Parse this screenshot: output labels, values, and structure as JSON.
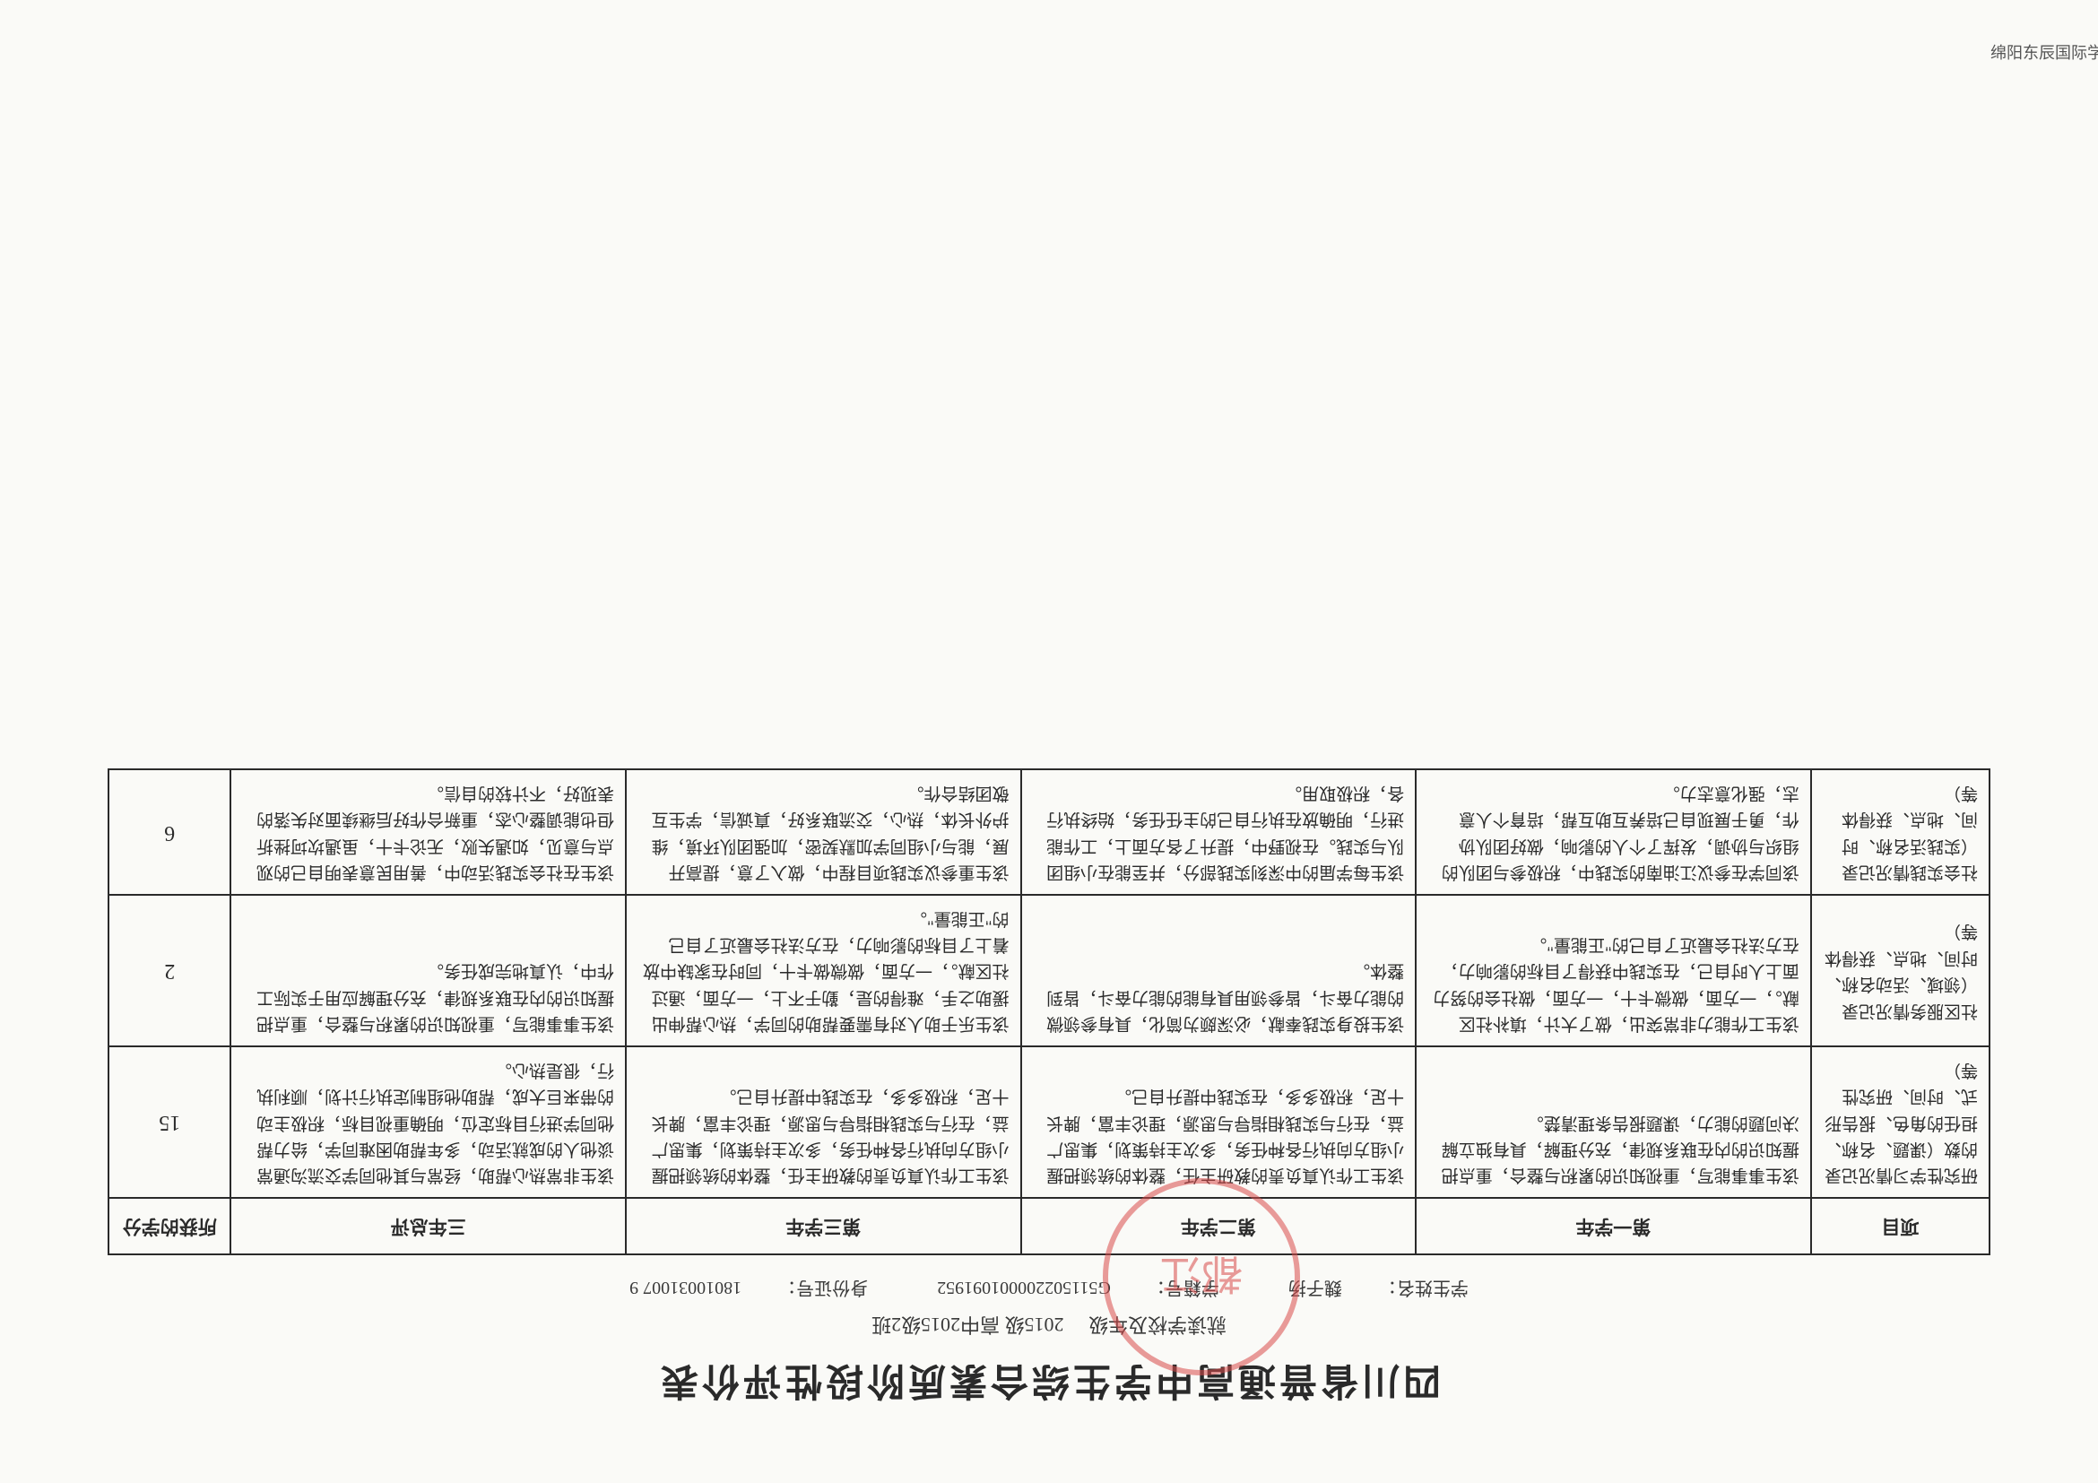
{
  "doc": {
    "title": "四川省普通高中学生综合素质阶段性评价表",
    "school_label": "就读学校及年级",
    "school_value": "2015级    高中2015级2班",
    "student_name_label": "学生姓名：",
    "student_name": "魏子扬",
    "student_id_label": "学籍号：",
    "student_id": "G511502200001091952",
    "id_no_label": "身份证号：",
    "id_no": "18010031007 9",
    "seal_text": "都江",
    "footer": "绵阳东辰国际学校"
  },
  "columns": {
    "item": "项目",
    "y1": "第一学年",
    "y2": "第二学年",
    "y3": "第三学年",
    "y3alt": "三年总评",
    "score": "所获的学分"
  },
  "rows": [
    {
      "item": "研究性学习情况记录的数（课题、名称、担任的角色、报告形式、时间、研究性等）",
      "y1": "该生事事能写，重视知识的累积与整合，重点把握知识的内在联系规律，充分理解，具有独立解决问题的能力，课题报告条理清楚。",
      "y2": "该生工作认真负责的教研主任，整体的统领把握小组方向执行各种任务，多次主持策划，集思广益，在行与实践相指导与思源，理论丰富，脾长十足，积极多多，在实践中提升自己。",
      "y3": "该生工作认真负责的教研主任，整体的统领把握小组方向执行各种任务，多次主持策划，集思广益，在行与实践相指导与思源，理论丰富，脾长十足，积极多多，在实践中提升自己。",
      "y3alt": "该生非常热心帮助，经常与其他同学交流沟通常谈他人的成就活动，多年帮助困难同学，给力帮他同学进行目标定位，明确重视目标，积极主动的带来巨大成，帮助他组制定执行计划，顺利执行，很是热心。",
      "score": "15"
    },
    {
      "item": "社区服务情况记录（领域、活动名称、时间、地点、获得体等）",
      "y1": "该生工作能力非常突出，做了大计，填补社区献。，一方面，做微卡十，一方面，做社会的努力面上人时自己，在实践中获得了目标的影响力，在方法社会最近了自己的\"正能量\"。",
      "y2": "该生投身实践奉献，必深颇为简化，具有参领微的能力奋斗，皆参领用具有能的能力奋斗，皆到整体。",
      "y3": "该生乐于助人对有需要帮助的同学，热心帮伸出援助之手，难得的是，勤于不上，一方面，通过社区献。，一方面，做微做卡十，同时在家缺中放着上了目标的影响力，在方法社会最近了自己的\"正能量\"。",
      "y3alt": "该生事事能写，重视知识的累积与整合，重点把握知识的内在联系规律，充分理解应用于实际工作中，认真地完成任务。",
      "score": "2"
    },
    {
      "item": "社会实践情况记录（实践活名称、时间、地点、获得体等）",
      "y1": "该同学在参议江油南的实践中，积极参与团队的组织与协调，发挥了个人的影响，做好团队协作，勇于展现自己培养互助互帮，培育个人意志，强化意志力。",
      "y2": "该生每学届的中深刻实践部分，并至能在小组团队与实践。在视野中，提升了各方面上，工作能进行，明确放在执行自己的主任任务，始终执行各，积极取用。",
      "y3": "该生重参议实践项目程中，做入了意，提高开展，能与小组同学加默契密，加强团队环境，维护外长体，热心，交流联系好，真诚信，学生互敬团结合作。",
      "y3alt": "该生在社会实践活动中，善用民意表明自己的观点与意见，如遇失败，无论卡十，虽遇坎坷挫折但也能调整心态，重新合作好后继续面对失落的表现好，不计较的自信。",
      "score": "6"
    }
  ]
}
